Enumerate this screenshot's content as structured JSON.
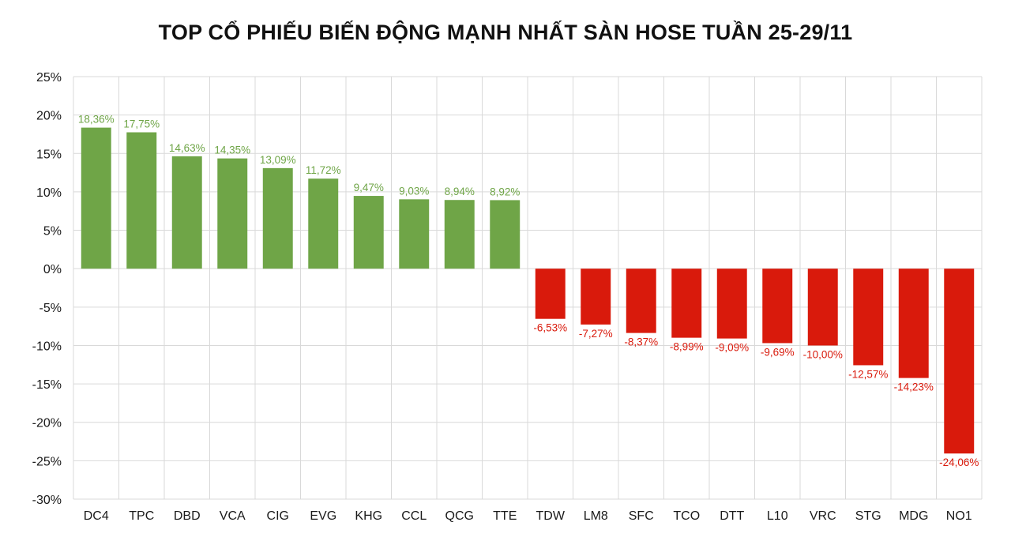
{
  "chart_data": {
    "type": "bar",
    "title": "TOP CỔ PHIẾU BIẾN ĐỘNG MẠNH NHẤT SÀN HOSE TUẦN 25-29/11",
    "xlabel": "",
    "ylabel": "",
    "categories": [
      "DC4",
      "TPC",
      "DBD",
      "VCA",
      "CIG",
      "EVG",
      "KHG",
      "CCL",
      "QCG",
      "TTE",
      "TDW",
      "LM8",
      "SFC",
      "TCO",
      "DTT",
      "L10",
      "VRC",
      "STG",
      "MDG",
      "NO1"
    ],
    "values": [
      18.36,
      17.75,
      14.63,
      14.35,
      13.09,
      11.72,
      9.47,
      9.03,
      8.94,
      8.92,
      -6.53,
      -7.27,
      -8.37,
      -8.99,
      -9.09,
      -9.69,
      -10.0,
      -12.57,
      -14.23,
      -24.06
    ],
    "value_labels": [
      "18,36%",
      "17,75%",
      "14,63%",
      "14,35%",
      "13,09%",
      "11,72%",
      "9,47%",
      "9,03%",
      "8,94%",
      "8,92%",
      "-6,53%",
      "-7,27%",
      "-8,37%",
      "-8,99%",
      "-9,09%",
      "-9,69%",
      "-10,00%",
      "-12,57%",
      "-14,23%",
      "-24,06%"
    ],
    "ylim": [
      -30,
      25
    ],
    "yticks": [
      25,
      20,
      15,
      10,
      5,
      0,
      -5,
      -10,
      -15,
      -20,
      -25,
      -30
    ],
    "ytick_labels": [
      "25%",
      "20%",
      "15%",
      "10%",
      "5%",
      "0%",
      "-5%",
      "-10%",
      "-15%",
      "-20%",
      "-25%",
      "-30%"
    ],
    "grid": true,
    "legend": "none",
    "colors": {
      "positive_bar": "#6fa547",
      "negative_bar": "#d91a0c",
      "positive_label": "#6fa547",
      "negative_label": "#d91a0c",
      "grid": "#d9d9d9"
    }
  }
}
